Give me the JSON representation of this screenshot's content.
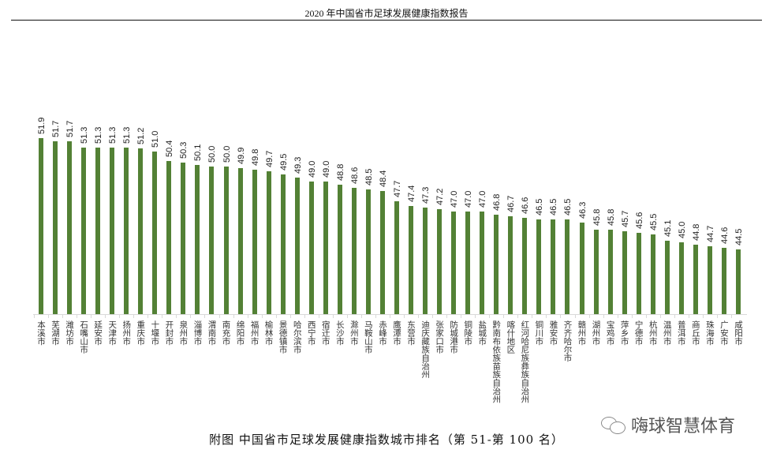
{
  "header": {
    "title": "2020 年中国省市足球发展健康指数报告"
  },
  "caption": "附图 中国省市足球发展健康指数城市排名（第 51-第 100 名）",
  "watermark": {
    "icon": "wechat-icon",
    "text": "嗨球智慧体育"
  },
  "colors": {
    "bar": "#538135",
    "axis": "#d9d9d9"
  },
  "chart_data": {
    "type": "bar",
    "title": "中国省市足球发展健康指数城市排名（第 51-第 100 名）",
    "xlabel": "",
    "ylabel": "",
    "ylim": [
      40.2,
      52
    ],
    "grid": false,
    "legend": "none",
    "data_labels": true,
    "categories": [
      "本溪市",
      "芜湖市",
      "潍坊市",
      "石嘴山市",
      "延安市",
      "天津市",
      "扬州市",
      "重庆市",
      "十堰市",
      "开封市",
      "泉州市",
      "淄博市",
      "渭南市",
      "南充市",
      "绵阳市",
      "福州市",
      "榆林市",
      "景德镇市",
      "哈尔滨市",
      "西宁市",
      "宿迁市",
      "长沙市",
      "滁州市",
      "马鞍山市",
      "赤峰市",
      "鹰潭市",
      "东营市",
      "迪庆藏族自治州",
      "张家口市",
      "防城港市",
      "铜陵市",
      "盐城市",
      "黔南布依族苗族自治州",
      "喀什地区",
      "红河哈尼族彝族自治州",
      "铜川市",
      "雅安市",
      "齐齐哈尔市",
      "赣州市",
      "湖州市",
      "宝鸡市",
      "萍乡市",
      "宁德市",
      "杭州市",
      "温州市",
      "普洱市",
      "商丘市",
      "珠海市",
      "广安市",
      "咸阳市"
    ],
    "values": [
      51.9,
      51.7,
      51.7,
      51.3,
      51.3,
      51.3,
      51.3,
      51.2,
      51.0,
      50.4,
      50.3,
      50.1,
      50.0,
      50.0,
      49.9,
      49.8,
      49.7,
      49.5,
      49.3,
      49.0,
      49.0,
      48.8,
      48.6,
      48.5,
      48.4,
      47.7,
      47.4,
      47.3,
      47.2,
      47.0,
      47.0,
      47.0,
      46.8,
      46.7,
      46.6,
      46.5,
      46.5,
      46.5,
      46.3,
      45.8,
      45.8,
      45.7,
      45.6,
      45.5,
      45.1,
      45.0,
      44.8,
      44.7,
      44.6,
      44.5
    ],
    "value_labels": [
      "51.9",
      "51.7",
      "51.7",
      "51.3",
      "51.3",
      "51.3",
      "51.3",
      "51.2",
      "51.0",
      "50.4",
      "50.3",
      "50.1",
      "50.0",
      "50.0",
      "49.9",
      "49.8",
      "49.7",
      "49.5",
      "49.3",
      "49.0",
      "49.0",
      "48.8",
      "48.6",
      "48.5",
      "48.4",
      "47.7",
      "47.4",
      "47.3",
      "47.2",
      "47.0",
      "47.0",
      "47.0",
      "46.8",
      "46.7",
      "46.6",
      "46.5",
      "46.5",
      "46.5",
      "46.3",
      "45.8",
      "45.8",
      "45.7",
      "45.6",
      "45.5",
      "45.1",
      "45.0",
      "44.8",
      "44.7",
      "44.6",
      "44.5"
    ]
  }
}
